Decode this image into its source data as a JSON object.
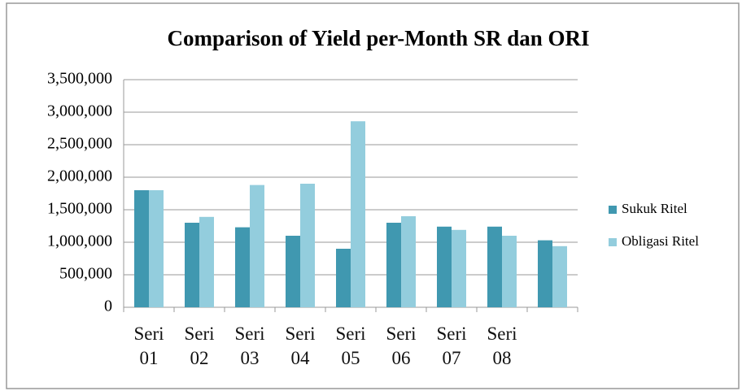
{
  "chart_data": {
    "type": "bar",
    "title": "Comparison of Yield per-Month SR dan ORI",
    "categories": [
      "Seri 01",
      "Seri 02",
      "Seri 03",
      "Seri 04",
      "Seri 05",
      "Seri 06",
      "Seri 07",
      "Seri 08",
      null
    ],
    "series": [
      {
        "name": "Sukuk Ritel",
        "color": "#4098b0",
        "values": [
          1800000,
          1300000,
          1230000,
          1100000,
          900000,
          1300000,
          1240000,
          1240000,
          1030000
        ]
      },
      {
        "name": "Obligasi Ritel",
        "color": "#93cddd",
        "values": [
          1800000,
          1390000,
          1880000,
          1900000,
          2860000,
          1400000,
          1190000,
          1100000,
          940000
        ]
      }
    ],
    "ylim": [
      0,
      3500000
    ],
    "yticks": [
      0,
      {
        "value": 500000,
        "label": "500,000"
      },
      {
        "value": 1000000,
        "label": "1,000,000"
      },
      {
        "value": 1500000,
        "label": "1,500,000"
      },
      {
        "value": 2000000,
        "label": "2,000,000"
      },
      {
        "value": 2500000,
        "label": "2,500,000"
      },
      {
        "value": 3000000,
        "label": "3,000,000"
      },
      {
        "value": 3500000,
        "label": "3,500,000"
      }
    ],
    "grid": true,
    "legend": "right"
  }
}
